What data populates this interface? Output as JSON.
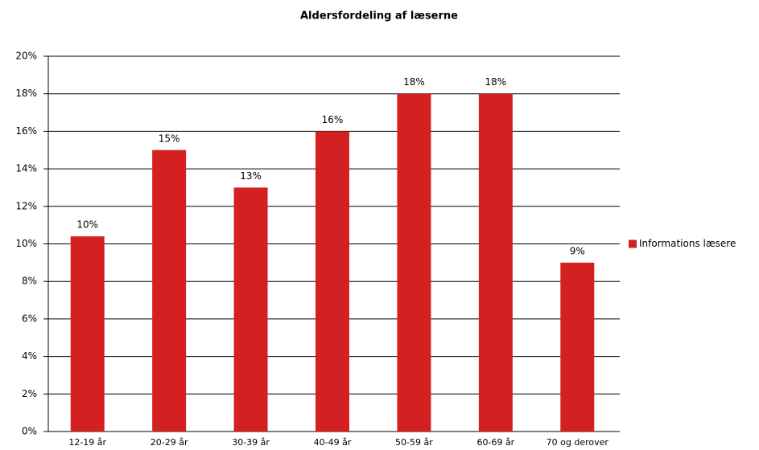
{
  "chart_data": {
    "type": "bar",
    "title": "Aldersfordeling af læserne",
    "categories": [
      "12-19 år",
      "20-29 år",
      "30-39 år",
      "40-49 år",
      "50-59 år",
      "60-69 år",
      "70 og derover"
    ],
    "series": [
      {
        "name": "Informations læsere",
        "color": "#d42020",
        "values": [
          10.4,
          15,
          13,
          16,
          18,
          18,
          9
        ],
        "value_labels": [
          "10%",
          "15%",
          "13%",
          "16%",
          "18%",
          "18%",
          "9%"
        ]
      }
    ],
    "ylim": [
      0,
      20
    ],
    "yticks": [
      {
        "value": 0,
        "label": "0%"
      },
      {
        "value": 2,
        "label": "2%"
      },
      {
        "value": 4,
        "label": "4%"
      },
      {
        "value": 6,
        "label": "6%"
      },
      {
        "value": 8,
        "label": "8%"
      },
      {
        "value": 10,
        "label": "10%"
      },
      {
        "value": 12,
        "label": "12%"
      },
      {
        "value": 14,
        "label": "14%"
      },
      {
        "value": 16,
        "label": "16%"
      },
      {
        "value": 18,
        "label": "18%"
      },
      {
        "value": 20,
        "label": "20%"
      }
    ],
    "grid": true,
    "legend": "right"
  }
}
